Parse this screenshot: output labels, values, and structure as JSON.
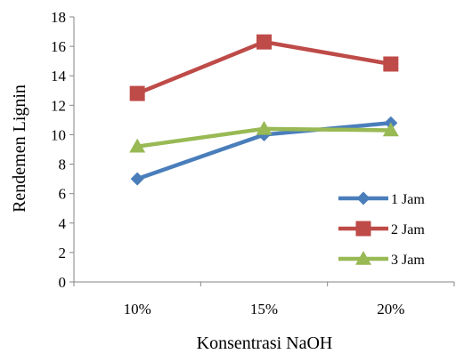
{
  "chart_data": {
    "type": "line",
    "categories": [
      "10%",
      "15%",
      "20%"
    ],
    "series": [
      {
        "name": "1 Jam",
        "values": [
          7.0,
          10.0,
          10.8
        ],
        "color": "#4a7ebb",
        "marker": "diamond"
      },
      {
        "name": "2 Jam",
        "values": [
          12.8,
          16.3,
          14.8
        ],
        "color": "#be4b48",
        "marker": "square"
      },
      {
        "name": "3 Jam",
        "values": [
          9.2,
          10.4,
          10.3
        ],
        "color": "#98b954",
        "marker": "triangle"
      }
    ],
    "xlabel": "Konsentrasi NaOH",
    "ylabel": "Rendemen Lignin",
    "ylim": [
      0,
      18
    ],
    "yticks": [
      0,
      2,
      4,
      6,
      8,
      10,
      12,
      14,
      16,
      18
    ],
    "grid": false,
    "legend_position": "bottom-right inside plot"
  }
}
